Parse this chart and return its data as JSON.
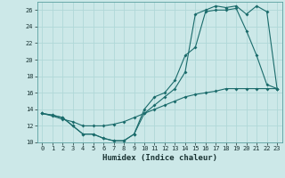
{
  "xlabel": "Humidex (Indice chaleur)",
  "bg_color": "#cce8e8",
  "line_color": "#1a6b6b",
  "grid_color": "#b0d8d8",
  "xlim": [
    -0.5,
    23.5
  ],
  "ylim": [
    10,
    27
  ],
  "xticks": [
    0,
    1,
    2,
    3,
    4,
    5,
    6,
    7,
    8,
    9,
    10,
    11,
    12,
    13,
    14,
    15,
    16,
    17,
    18,
    19,
    20,
    21,
    22,
    23
  ],
  "yticks": [
    10,
    12,
    14,
    16,
    18,
    20,
    22,
    24,
    26
  ],
  "line1_x": [
    0,
    1,
    2,
    3,
    4,
    5,
    6,
    7,
    8,
    9,
    10,
    11,
    12,
    13,
    14,
    15,
    16,
    17,
    18,
    19,
    20,
    21,
    22,
    23
  ],
  "line1_y": [
    13.5,
    13.3,
    13.0,
    12.0,
    11.0,
    11.0,
    10.5,
    10.2,
    10.2,
    11.0,
    14.0,
    15.5,
    16.0,
    17.5,
    20.5,
    21.5,
    25.8,
    26.0,
    26.0,
    26.2,
    23.5,
    20.5,
    17.0,
    16.5
  ],
  "line2_x": [
    0,
    1,
    2,
    3,
    4,
    5,
    6,
    7,
    8,
    9,
    10,
    11,
    12,
    13,
    14,
    15,
    16,
    17,
    18,
    19,
    20,
    21,
    22,
    23
  ],
  "line2_y": [
    13.5,
    13.3,
    13.0,
    12.0,
    11.0,
    11.0,
    10.5,
    10.2,
    10.2,
    11.0,
    13.5,
    14.5,
    15.5,
    16.5,
    18.5,
    25.5,
    26.0,
    26.5,
    26.3,
    26.5,
    25.5,
    26.5,
    25.8,
    16.5
  ],
  "line3_x": [
    0,
    1,
    2,
    3,
    4,
    5,
    6,
    7,
    8,
    9,
    10,
    11,
    12,
    13,
    14,
    15,
    16,
    17,
    18,
    19,
    20,
    21,
    22,
    23
  ],
  "line3_y": [
    13.5,
    13.2,
    12.8,
    12.5,
    12.0,
    12.0,
    12.0,
    12.2,
    12.5,
    13.0,
    13.5,
    14.0,
    14.5,
    15.0,
    15.5,
    15.8,
    16.0,
    16.2,
    16.5,
    16.5,
    16.5,
    16.5,
    16.5,
    16.5
  ]
}
